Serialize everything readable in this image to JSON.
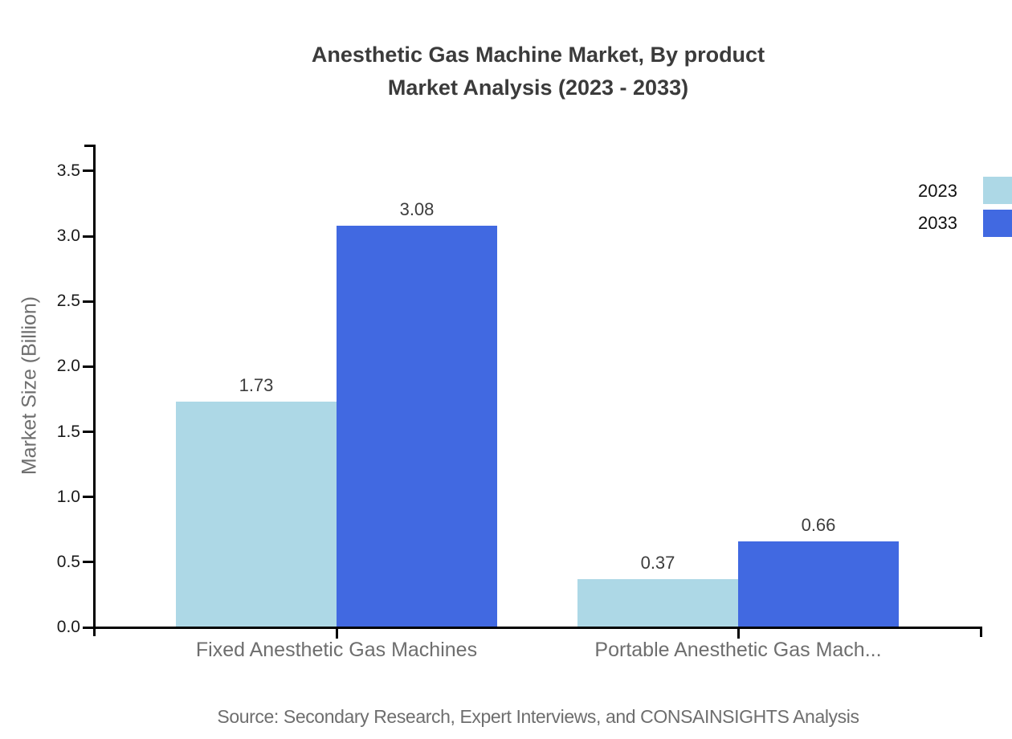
{
  "title": {
    "line1": "Anesthetic Gas Machine Market, By product",
    "line2": "Market Analysis (2023 - 2033)"
  },
  "source": "Source: Secondary Research, Expert Interviews, and CONSAINSIGHTS Analysis",
  "colors": {
    "series_2023": "#ADD8E6",
    "series_2033": "#4169E1",
    "axis": "#000000",
    "title_text": "#3b3b3b",
    "muted_text": "#6e6e6e",
    "value_text": "#3d3d3d"
  },
  "chart_data": {
    "type": "bar",
    "title": "Anesthetic Gas Machine Market, By product Market Analysis (2023 - 2033)",
    "categories": [
      "Fixed Anesthetic Gas Machines",
      "Portable Anesthetic Gas Mach..."
    ],
    "series": [
      {
        "name": "2023",
        "color": "#ADD8E6",
        "values": [
          1.73,
          0.37
        ],
        "labels": [
          "1.73",
          "0.37"
        ]
      },
      {
        "name": "2033",
        "color": "#4169E1",
        "values": [
          3.08,
          0.66
        ],
        "labels": [
          "3.08",
          "0.66"
        ]
      }
    ],
    "xlabel": "",
    "ylabel": "Market Size (Billion)",
    "ylim": [
      0,
      3.5
    ],
    "yticks": [
      "0.0",
      "0.5",
      "1.0",
      "1.5",
      "2.0",
      "2.5",
      "3.0",
      "3.5"
    ],
    "grid": false,
    "legend_position": "top-right",
    "value_labels_shown": true
  }
}
